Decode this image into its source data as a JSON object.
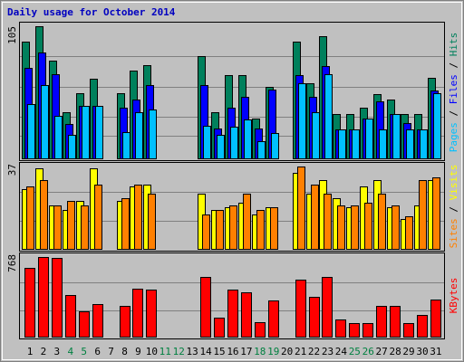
{
  "chart_data": [
    {
      "type": "bar",
      "title": "Daily usage for October 2014",
      "title_color": "#0000c0",
      "legend_separator": " / ",
      "categories": [
        "1",
        "2",
        "3",
        "4",
        "5",
        "6",
        "7",
        "8",
        "9",
        "10",
        "11",
        "12",
        "13",
        "14",
        "15",
        "16",
        "17",
        "18",
        "19",
        "20",
        "21",
        "22",
        "23",
        "24",
        "25",
        "26",
        "27",
        "28",
        "29",
        "30",
        "31"
      ],
      "category_colors": [
        "#000000",
        "#000000",
        "#000000",
        "#008040",
        "#008040",
        "#000000",
        "#000000",
        "#000000",
        "#000000",
        "#000000",
        "#008040",
        "#008040",
        "#000000",
        "#000000",
        "#000000",
        "#000000",
        "#000000",
        "#008040",
        "#008040",
        "#000000",
        "#000000",
        "#000000",
        "#000000",
        "#000000",
        "#008040",
        "#008040",
        "#000000",
        "#000000",
        "#000000",
        "#000000",
        "#000000"
      ],
      "ylim": [
        0,
        105
      ],
      "yticks": [
        105
      ],
      "series": [
        {
          "name": "Hits",
          "color": "#00805c",
          "values": [
            93,
            105,
            78,
            37,
            52,
            63,
            0,
            52,
            70,
            74,
            0,
            0,
            0,
            81,
            37,
            66,
            66,
            32,
            57,
            0,
            93,
            60,
            97,
            35,
            35,
            40,
            51,
            47,
            35,
            35,
            64
          ]
        },
        {
          "name": "Files",
          "color": "#0000ff",
          "values": [
            72,
            84,
            67,
            27,
            42,
            42,
            0,
            40,
            47,
            58,
            0,
            0,
            0,
            58,
            24,
            40,
            49,
            24,
            55,
            0,
            66,
            49,
            73,
            23,
            23,
            32,
            45,
            35,
            28,
            23,
            54
          ]
        },
        {
          "name": "Pages",
          "color": "#00c0ff",
          "values": [
            43,
            58,
            34,
            19,
            42,
            42,
            0,
            21,
            37,
            39,
            0,
            0,
            0,
            26,
            19,
            25,
            31,
            14,
            20,
            0,
            60,
            37,
            67,
            23,
            23,
            32,
            23,
            35,
            23,
            23,
            52
          ]
        }
      ]
    },
    {
      "type": "bar",
      "ylim": [
        0,
        37
      ],
      "yticks": [
        37
      ],
      "series": [
        {
          "name": "Visits",
          "color": "#ffff00",
          "values": [
            26,
            35,
            19,
            17,
            21,
            35,
            0,
            21,
            27,
            28,
            0,
            0,
            0,
            24,
            17,
            18,
            20,
            15,
            18,
            0,
            33,
            24,
            30,
            22,
            18,
            27,
            30,
            18,
            13,
            19,
            30
          ]
        },
        {
          "name": "Sites",
          "color": "#ff8000",
          "values": [
            27,
            30,
            19,
            21,
            19,
            28,
            0,
            22,
            28,
            24,
            0,
            0,
            0,
            15,
            17,
            19,
            24,
            17,
            18,
            0,
            36,
            28,
            24,
            19,
            19,
            20,
            24,
            19,
            14,
            30,
            31
          ]
        }
      ]
    },
    {
      "type": "bar",
      "ylim": [
        0,
        768
      ],
      "yticks": [
        768
      ],
      "series": [
        {
          "name": "KBytes",
          "color": "#ff0000",
          "values": [
            641,
            743,
            734,
            388,
            236,
            304,
            0,
            287,
            447,
            439,
            0,
            0,
            0,
            557,
            177,
            439,
            414,
            135,
            338,
            0,
            532,
            371,
            557,
            160,
            127,
            127,
            287,
            287,
            127,
            203,
            346
          ]
        }
      ]
    }
  ]
}
